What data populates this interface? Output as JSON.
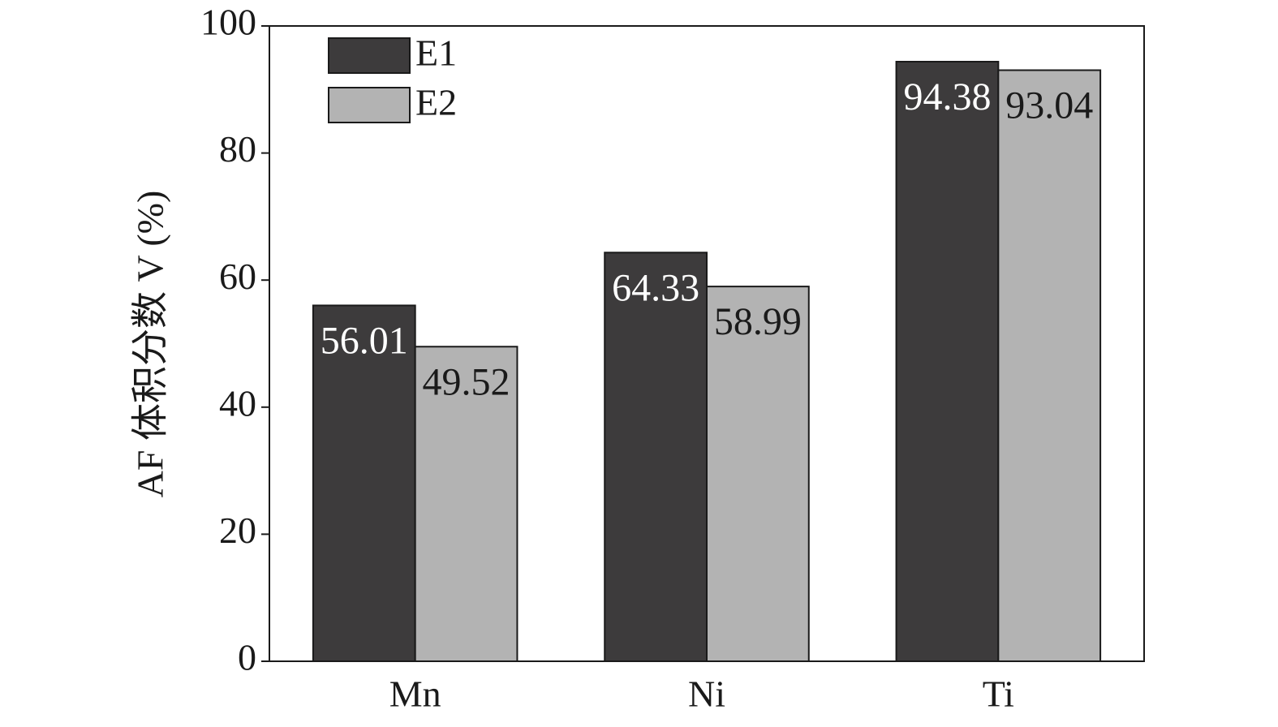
{
  "chart_data": {
    "type": "bar",
    "ylabel": "AF 体积分数 V (%)",
    "categories": [
      "Mn",
      "Ni",
      "Ti"
    ],
    "series": [
      {
        "name": "E1",
        "color": "#3d3b3c",
        "values": [
          56.01,
          64.33,
          94.38
        ]
      },
      {
        "name": "E2",
        "color": "#b3b3b3",
        "values": [
          49.52,
          58.99,
          93.04
        ]
      }
    ],
    "ylim": [
      0,
      100
    ],
    "yticks": [
      0,
      20,
      40,
      60,
      80,
      100
    ],
    "legend": "upper left"
  }
}
